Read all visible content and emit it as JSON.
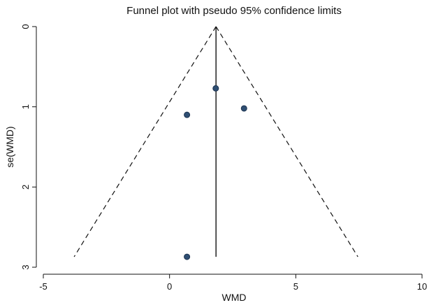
{
  "chart_data": {
    "type": "scatter",
    "title": "Funnel plot with pseudo 95% confidence limits",
    "xlabel": "WMD",
    "ylabel": "se(WMD)",
    "xlim": [
      -5,
      10
    ],
    "ylim": [
      0,
      3
    ],
    "y_reversed": true,
    "x_ticks": [
      -5,
      0,
      5,
      10
    ],
    "y_ticks": [
      0,
      1,
      2,
      3
    ],
    "grid": false,
    "pooled_effect": 1.84,
    "pseudo_ci_limits": {
      "se_max": 2.87,
      "lower": [
        [
          1.84,
          0
        ],
        [
          -3.78,
          2.87
        ]
      ],
      "upper": [
        [
          1.84,
          0
        ],
        [
          7.46,
          2.87
        ]
      ]
    },
    "points": [
      {
        "x": 1.83,
        "y": 0.77
      },
      {
        "x": 2.95,
        "y": 1.02
      },
      {
        "x": 0.69,
        "y": 1.1
      },
      {
        "x": 0.69,
        "y": 2.87
      }
    ],
    "colors": {
      "point_fill": "#2f4f73",
      "line": "#111111"
    }
  }
}
